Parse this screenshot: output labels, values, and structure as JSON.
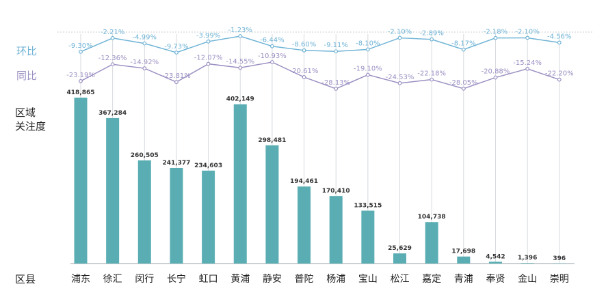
{
  "labels": {
    "mom": "环比",
    "yoy": "同比",
    "attention": "区域\n关注度",
    "district": "区县"
  },
  "chart_data": {
    "type": "bar",
    "categories": [
      "浦东",
      "徐汇",
      "闵行",
      "长宁",
      "虹口",
      "黄浦",
      "静安",
      "普陀",
      "杨浦",
      "宝山",
      "松江",
      "嘉定",
      "青浦",
      "奉贤",
      "金山",
      "崇明"
    ],
    "series": [
      {
        "name": "区域关注度",
        "type": "bar",
        "values": [
          418865,
          367284,
          260505,
          241377,
          234603,
          402149,
          298481,
          194461,
          170410,
          133515,
          25629,
          104738,
          17698,
          4542,
          1396,
          396
        ],
        "labels": [
          "418,865",
          "367,284",
          "260,505",
          "241,377",
          "234,603",
          "402,149",
          "298,481",
          "194,461",
          "170,410",
          "133,515",
          "25,629",
          "104,738",
          "17,698",
          "4,542",
          "1,396",
          "396"
        ],
        "color": "#5aaeb3"
      },
      {
        "name": "环比",
        "type": "line",
        "values": [
          -9.3,
          -2.21,
          -4.99,
          -9.73,
          -3.99,
          -1.23,
          -6.44,
          -8.6,
          -9.11,
          -8.1,
          -2.1,
          -2.89,
          -8.17,
          -2.18,
          -2.1,
          -4.56
        ],
        "labels": [
          "-9.30%",
          "-2.21%",
          "-4.99%",
          "-9.73%",
          "-3.99%",
          "-1.23%",
          "-6.44%",
          "-8.60%",
          "-9.11%",
          "-8.10%",
          "-2.10%",
          "-2.89%",
          "-8.17%",
          "-2.18%",
          "-2.10%",
          "-4.56%"
        ],
        "color": "#6fb3d6"
      },
      {
        "name": "同比",
        "type": "line",
        "values": [
          -23.19,
          -12.36,
          -14.92,
          -23.81,
          -12.07,
          -14.55,
          -10.93,
          -20.61,
          -28.13,
          -19.1,
          -24.53,
          -22.18,
          -28.05,
          -20.88,
          -15.24,
          -22.2
        ],
        "labels": [
          "-23.19%",
          "-12.36%",
          "-14.92%",
          "-23.81%",
          "-12.07%",
          "-14.55%",
          "-10.93%",
          "-20.61%",
          "-28.13%",
          "-19.10%",
          "-24.53%",
          "-22.18%",
          "-28.05%",
          "-20.88%",
          "-15.24%",
          "-22.20%"
        ],
        "color": "#9b8fc2"
      }
    ],
    "ylim": [
      0,
      418865
    ],
    "grid": false
  }
}
